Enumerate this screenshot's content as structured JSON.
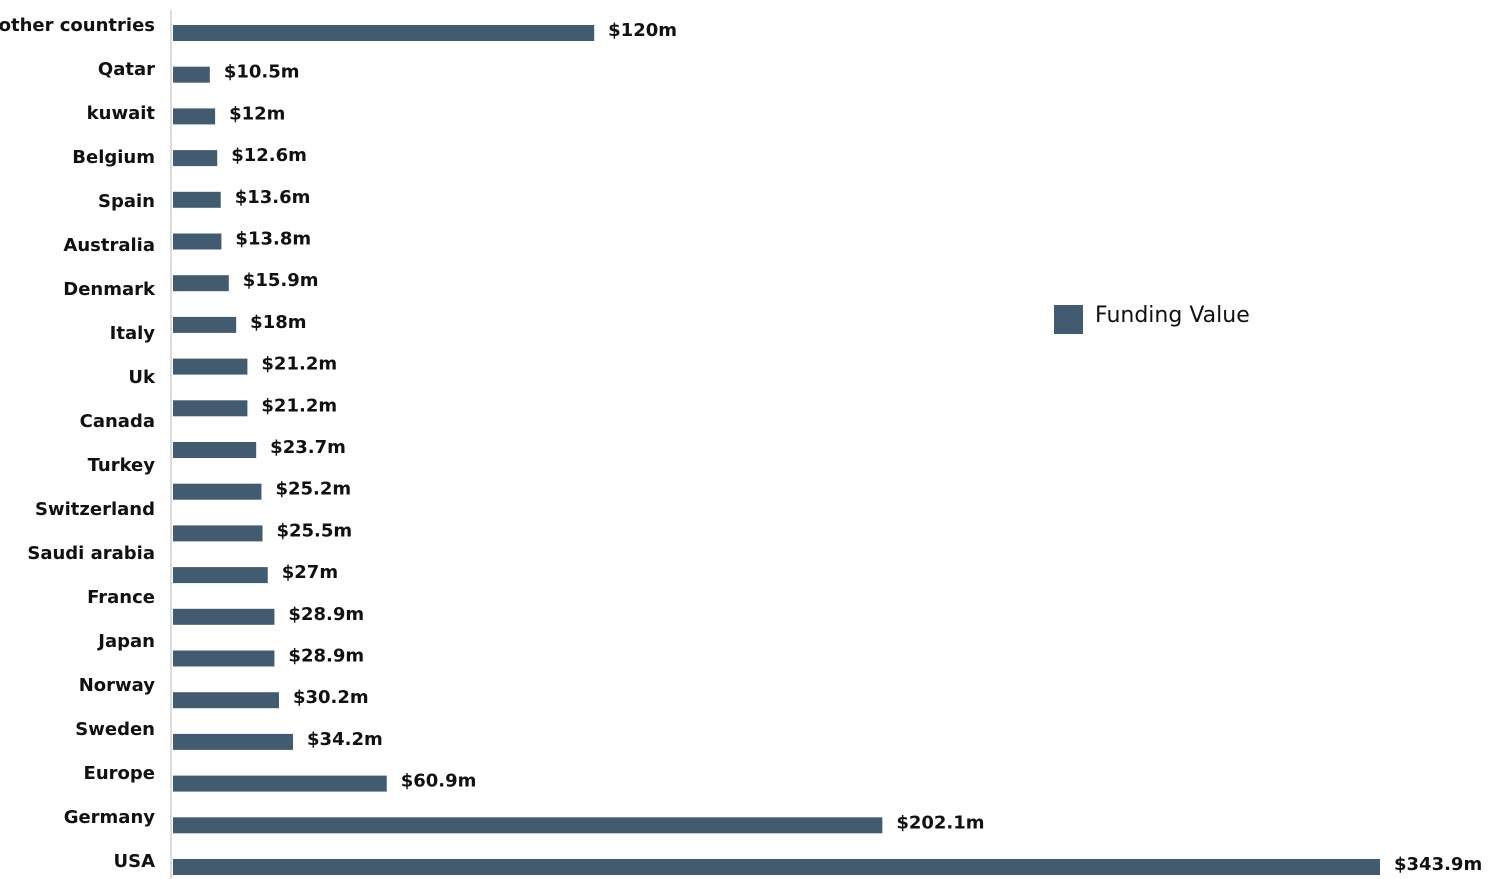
{
  "chart_data": {
    "type": "hbar",
    "categories": [
      "other countries",
      "Qatar",
      "kuwait",
      "Belgium",
      "Spain",
      "Australia",
      "Denmark",
      "Italy",
      "Uk",
      "Canada",
      "Turkey",
      "Switzerland",
      null,
      "Saudi arabia",
      "France",
      "Japan",
      "Norway",
      "Sweden",
      "Europe",
      "Germany",
      "USA"
    ],
    "series": [
      {
        "name": "Funding Value",
        "color": "#435b70",
        "values": [
          120,
          10.5,
          12,
          12.6,
          13.6,
          13.8,
          15.9,
          18,
          21.2,
          21.2,
          23.7,
          25.2,
          25.5,
          27,
          28.9,
          28.9,
          30.2,
          34.2,
          60.9,
          202.1,
          343.9
        ],
        "value_labels": [
          "$120m",
          "$10.5m",
          "$12m",
          "$12.6m",
          "$13.6m",
          "$13.8m",
          "$15.9m",
          "$18m",
          "$21.2m",
          "$21.2m",
          "$23.7m",
          "$25.2m",
          "$25.5m",
          "$27m",
          "$28.9m",
          "$28.9m",
          "$30.2m",
          "$34.2m",
          "$60.9m",
          "$202.1m",
          "$343.9m"
        ]
      }
    ],
    "legend": "right"
  }
}
